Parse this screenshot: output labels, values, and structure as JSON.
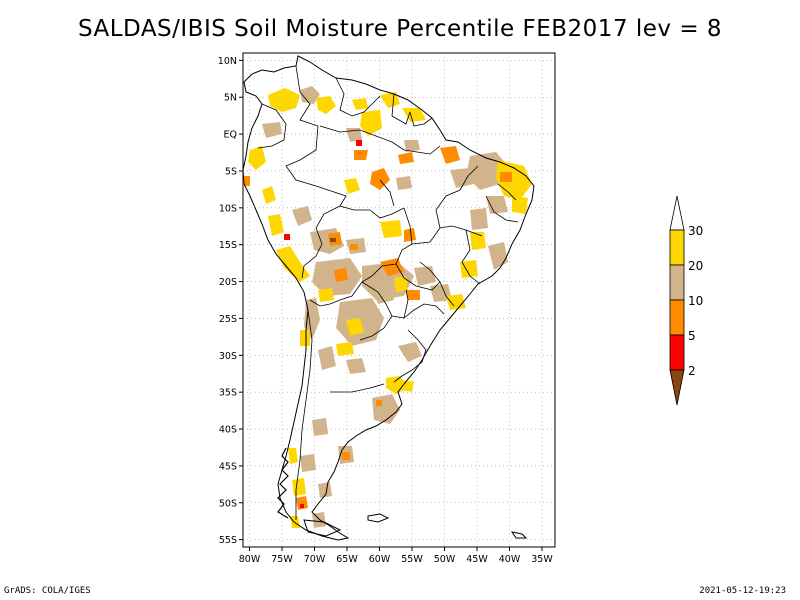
{
  "title": "SALDAS/IBIS Soil Moisture Percentile FEB2017 lev = 8",
  "map": {
    "lat_ticks": [
      "10N",
      "5N",
      "EQ",
      "5S",
      "10S",
      "15S",
      "20S",
      "25S",
      "30S",
      "35S",
      "40S",
      "45S",
      "50S",
      "55S"
    ],
    "lon_ticks": [
      "80W",
      "75W",
      "70W",
      "65W",
      "60W",
      "55W",
      "50W",
      "45W",
      "40W",
      "35W"
    ],
    "lat_range": [
      -56,
      11
    ],
    "lon_range": [
      -81,
      -33
    ],
    "gridlines": true,
    "region": "South America"
  },
  "legend": {
    "labels": [
      "2",
      "5",
      "10",
      "20",
      "30"
    ],
    "colors": {
      "below_2": "#8b4513",
      "2_to_5": "#ff0000",
      "5_to_10": "#ff8c00",
      "10_to_20": "#d2b48c",
      "20_to_30": "#ffd700",
      "above_30": "#ffffff"
    },
    "placement": "right"
  },
  "footer": {
    "left": "GrADS: COLA/IGES",
    "right": "2021-05-12-19:23"
  }
}
